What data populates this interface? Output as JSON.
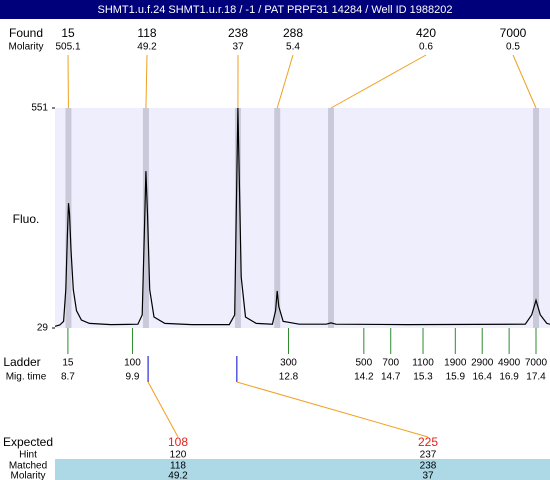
{
  "chart_data": {
    "type": "electropherogram",
    "title": "SHMT1.u.f.24  SHMT1.u.r.18 / -1 / PAT PRPF31 14284 / Well ID 1988202",
    "ylabel": "Fluo.",
    "xlim": [
      8.46,
      17.66
    ],
    "ylim": [
      29,
      551
    ],
    "yticks": [
      29,
      551
    ],
    "trace": {
      "x": [
        8.46,
        8.55,
        8.62,
        8.66,
        8.69,
        8.71,
        8.73,
        8.76,
        8.8,
        8.86,
        8.95,
        9.1,
        9.5,
        10.0,
        10.08,
        10.12,
        10.15,
        10.18,
        10.22,
        10.3,
        10.5,
        11.0,
        11.7,
        11.8,
        11.84,
        11.86,
        11.88,
        11.92,
        12.0,
        12.2,
        12.5,
        12.56,
        12.59,
        12.62,
        12.7,
        13.0,
        13.5,
        13.59,
        13.68,
        15.0,
        17.2,
        17.32,
        17.4,
        17.48,
        17.6,
        17.66
      ],
      "values": [
        33,
        36,
        45,
        120,
        250,
        325,
        300,
        210,
        120,
        70,
        48,
        40,
        37,
        38,
        60,
        250,
        401,
        300,
        120,
        55,
        40,
        37,
        37,
        60,
        400,
        551,
        420,
        150,
        55,
        40,
        38,
        70,
        117,
        80,
        45,
        38,
        38,
        41,
        38,
        37,
        38,
        60,
        95,
        60,
        40,
        38
      ],
      "color": "#000000"
    },
    "found": {
      "label": "Found",
      "sizes": [
        15,
        118,
        238,
        288,
        420,
        7000
      ],
      "molarity_label": "Molarity",
      "molarity": [
        505.1,
        49.2,
        37,
        5.4,
        0.6,
        0.5
      ],
      "x": [
        8.71,
        10.15,
        11.86,
        12.59,
        13.59,
        17.4
      ]
    },
    "ladder": {
      "label": "Ladder",
      "time_label": "Mig. time",
      "sizes": [
        15,
        100,
        300,
        500,
        700,
        1100,
        1900,
        2900,
        4900,
        7000
      ],
      "times": [
        8.7,
        9.9,
        12.8,
        14.2,
        14.7,
        15.3,
        15.9,
        16.4,
        16.9,
        17.4
      ]
    },
    "expected": {
      "label": "Expected",
      "values": [
        108,
        225
      ],
      "x": [
        10.19,
        11.84
      ],
      "hint_label": "Hint",
      "hint": [
        120,
        237
      ],
      "matched_label": "Matched",
      "matched": [
        118,
        238
      ],
      "molarity_label": "Molarity",
      "molarity": [
        49.2,
        37
      ]
    }
  }
}
